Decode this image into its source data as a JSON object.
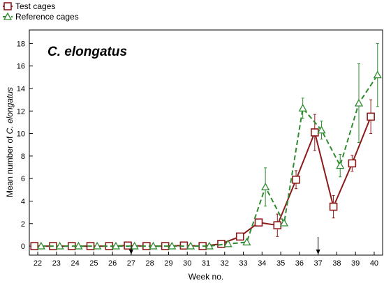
{
  "chart_data": {
    "type": "line",
    "title": "C. elongatus",
    "xlabel": "Week no.",
    "ylabel": [
      "Mean number of ",
      "C. elongatus"
    ],
    "x": [
      22,
      23,
      24,
      25,
      26,
      27,
      28,
      29,
      30,
      31,
      32,
      33,
      34,
      35,
      36,
      37,
      38,
      39,
      40
    ],
    "xlim": [
      21.55,
      40.45
    ],
    "ylim": [
      -0.8,
      19.2
    ],
    "yticks": [
      0,
      2,
      4,
      6,
      8,
      10,
      12,
      14,
      16,
      18
    ],
    "grid": false,
    "legend_position": "top-left",
    "arrows_at_week": [
      27,
      37
    ],
    "series": [
      {
        "name": "Test cages",
        "color": "#8b1a1a",
        "marker": "square",
        "line_style": "solid",
        "x_offset": -0.18,
        "values": [
          0,
          0,
          0,
          0,
          0,
          0.05,
          0,
          0,
          0.05,
          0,
          0.2,
          0.85,
          2.1,
          1.85,
          5.9,
          10.1,
          3.5,
          7.35,
          11.5
        ],
        "err": [
          0,
          0,
          0,
          0,
          0,
          0,
          0,
          0,
          0,
          0,
          0.1,
          0.3,
          0.3,
          1.0,
          0.8,
          1.6,
          1.0,
          0.7,
          1.5
        ]
      },
      {
        "name": "Reference cages",
        "color": "#2e8b2e",
        "marker": "triangle",
        "line_style": "dashed",
        "x_offset": 0.18,
        "values": [
          0,
          0,
          0,
          0,
          0,
          0,
          0,
          0,
          0,
          0,
          0.2,
          0.35,
          5.25,
          2.05,
          12.25,
          10.3,
          7.15,
          12.7,
          15.2
        ],
        "err": [
          0,
          0,
          0,
          0,
          0,
          0,
          0,
          0,
          0,
          0,
          0.05,
          0.05,
          1.7,
          0.2,
          0.9,
          0.8,
          1.0,
          3.5,
          2.8
        ]
      }
    ]
  }
}
